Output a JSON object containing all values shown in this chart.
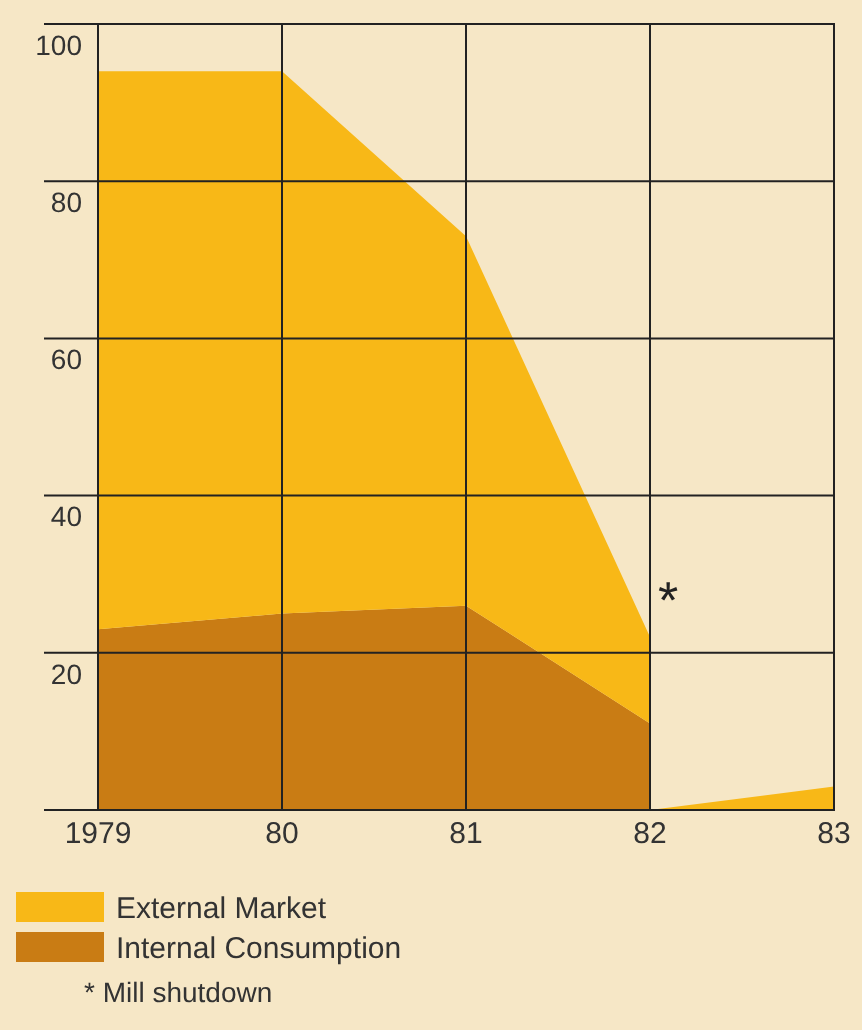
{
  "chart_data": {
    "type": "area",
    "stacked": true,
    "x": [
      1979,
      1980,
      1981,
      1982,
      1982,
      1983
    ],
    "series": [
      {
        "name": "Internal Consumption",
        "color": "#c97c14",
        "values": [
          23,
          25,
          26,
          11,
          0,
          0
        ]
      },
      {
        "name": "External Market",
        "color": "#f8b817",
        "values": [
          71,
          69,
          47,
          11,
          0,
          3
        ]
      }
    ],
    "xlim": [
      1979,
      1983
    ],
    "xticks": [
      1979,
      {
        "value": 1980,
        "label": "80"
      },
      {
        "value": 1981,
        "label": "81"
      },
      {
        "value": 1982,
        "label": "82"
      },
      {
        "value": 1983,
        "label": "83"
      }
    ],
    "ylim": [
      0,
      100
    ],
    "yticks": [
      {
        "value": 0,
        "label": null
      },
      20,
      40,
      60,
      80,
      100
    ],
    "tick_labels": "xy",
    "grid": true,
    "legend": "bottom",
    "annotations": [
      {
        "text": "*",
        "x": 1982,
        "y": 25
      },
      "* Mill shutdown"
    ]
  }
}
